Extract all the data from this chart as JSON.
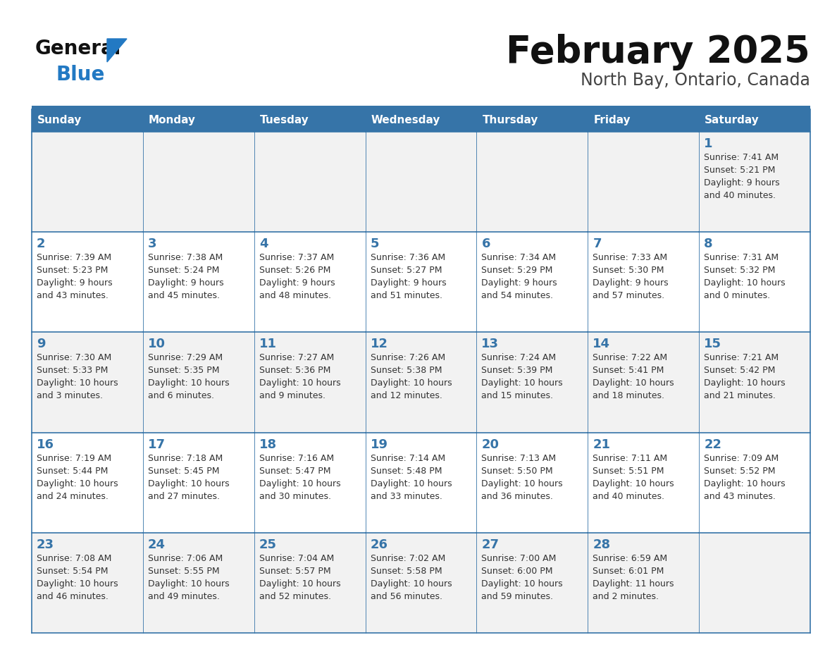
{
  "title": "February 2025",
  "subtitle": "North Bay, Ontario, Canada",
  "days_of_week": [
    "Sunday",
    "Monday",
    "Tuesday",
    "Wednesday",
    "Thursday",
    "Friday",
    "Saturday"
  ],
  "header_bg": "#3674a8",
  "header_text": "#ffffff",
  "cell_bg_odd": "#f2f2f2",
  "cell_bg_even": "#ffffff",
  "border_color": "#3674a8",
  "day_num_color": "#3674a8",
  "text_color": "#333333",
  "logo_black": "#111111",
  "logo_blue": "#2279c3",
  "title_color": "#111111",
  "subtitle_color": "#444444",
  "weeks": [
    [
      {
        "day": null,
        "info": ""
      },
      {
        "day": null,
        "info": ""
      },
      {
        "day": null,
        "info": ""
      },
      {
        "day": null,
        "info": ""
      },
      {
        "day": null,
        "info": ""
      },
      {
        "day": null,
        "info": ""
      },
      {
        "day": 1,
        "info": "Sunrise: 7:41 AM\nSunset: 5:21 PM\nDaylight: 9 hours\nand 40 minutes."
      }
    ],
    [
      {
        "day": 2,
        "info": "Sunrise: 7:39 AM\nSunset: 5:23 PM\nDaylight: 9 hours\nand 43 minutes."
      },
      {
        "day": 3,
        "info": "Sunrise: 7:38 AM\nSunset: 5:24 PM\nDaylight: 9 hours\nand 45 minutes."
      },
      {
        "day": 4,
        "info": "Sunrise: 7:37 AM\nSunset: 5:26 PM\nDaylight: 9 hours\nand 48 minutes."
      },
      {
        "day": 5,
        "info": "Sunrise: 7:36 AM\nSunset: 5:27 PM\nDaylight: 9 hours\nand 51 minutes."
      },
      {
        "day": 6,
        "info": "Sunrise: 7:34 AM\nSunset: 5:29 PM\nDaylight: 9 hours\nand 54 minutes."
      },
      {
        "day": 7,
        "info": "Sunrise: 7:33 AM\nSunset: 5:30 PM\nDaylight: 9 hours\nand 57 minutes."
      },
      {
        "day": 8,
        "info": "Sunrise: 7:31 AM\nSunset: 5:32 PM\nDaylight: 10 hours\nand 0 minutes."
      }
    ],
    [
      {
        "day": 9,
        "info": "Sunrise: 7:30 AM\nSunset: 5:33 PM\nDaylight: 10 hours\nand 3 minutes."
      },
      {
        "day": 10,
        "info": "Sunrise: 7:29 AM\nSunset: 5:35 PM\nDaylight: 10 hours\nand 6 minutes."
      },
      {
        "day": 11,
        "info": "Sunrise: 7:27 AM\nSunset: 5:36 PM\nDaylight: 10 hours\nand 9 minutes."
      },
      {
        "day": 12,
        "info": "Sunrise: 7:26 AM\nSunset: 5:38 PM\nDaylight: 10 hours\nand 12 minutes."
      },
      {
        "day": 13,
        "info": "Sunrise: 7:24 AM\nSunset: 5:39 PM\nDaylight: 10 hours\nand 15 minutes."
      },
      {
        "day": 14,
        "info": "Sunrise: 7:22 AM\nSunset: 5:41 PM\nDaylight: 10 hours\nand 18 minutes."
      },
      {
        "day": 15,
        "info": "Sunrise: 7:21 AM\nSunset: 5:42 PM\nDaylight: 10 hours\nand 21 minutes."
      }
    ],
    [
      {
        "day": 16,
        "info": "Sunrise: 7:19 AM\nSunset: 5:44 PM\nDaylight: 10 hours\nand 24 minutes."
      },
      {
        "day": 17,
        "info": "Sunrise: 7:18 AM\nSunset: 5:45 PM\nDaylight: 10 hours\nand 27 minutes."
      },
      {
        "day": 18,
        "info": "Sunrise: 7:16 AM\nSunset: 5:47 PM\nDaylight: 10 hours\nand 30 minutes."
      },
      {
        "day": 19,
        "info": "Sunrise: 7:14 AM\nSunset: 5:48 PM\nDaylight: 10 hours\nand 33 minutes."
      },
      {
        "day": 20,
        "info": "Sunrise: 7:13 AM\nSunset: 5:50 PM\nDaylight: 10 hours\nand 36 minutes."
      },
      {
        "day": 21,
        "info": "Sunrise: 7:11 AM\nSunset: 5:51 PM\nDaylight: 10 hours\nand 40 minutes."
      },
      {
        "day": 22,
        "info": "Sunrise: 7:09 AM\nSunset: 5:52 PM\nDaylight: 10 hours\nand 43 minutes."
      }
    ],
    [
      {
        "day": 23,
        "info": "Sunrise: 7:08 AM\nSunset: 5:54 PM\nDaylight: 10 hours\nand 46 minutes."
      },
      {
        "day": 24,
        "info": "Sunrise: 7:06 AM\nSunset: 5:55 PM\nDaylight: 10 hours\nand 49 minutes."
      },
      {
        "day": 25,
        "info": "Sunrise: 7:04 AM\nSunset: 5:57 PM\nDaylight: 10 hours\nand 52 minutes."
      },
      {
        "day": 26,
        "info": "Sunrise: 7:02 AM\nSunset: 5:58 PM\nDaylight: 10 hours\nand 56 minutes."
      },
      {
        "day": 27,
        "info": "Sunrise: 7:00 AM\nSunset: 6:00 PM\nDaylight: 10 hours\nand 59 minutes."
      },
      {
        "day": 28,
        "info": "Sunrise: 6:59 AM\nSunset: 6:01 PM\nDaylight: 11 hours\nand 2 minutes."
      },
      {
        "day": null,
        "info": ""
      }
    ]
  ]
}
